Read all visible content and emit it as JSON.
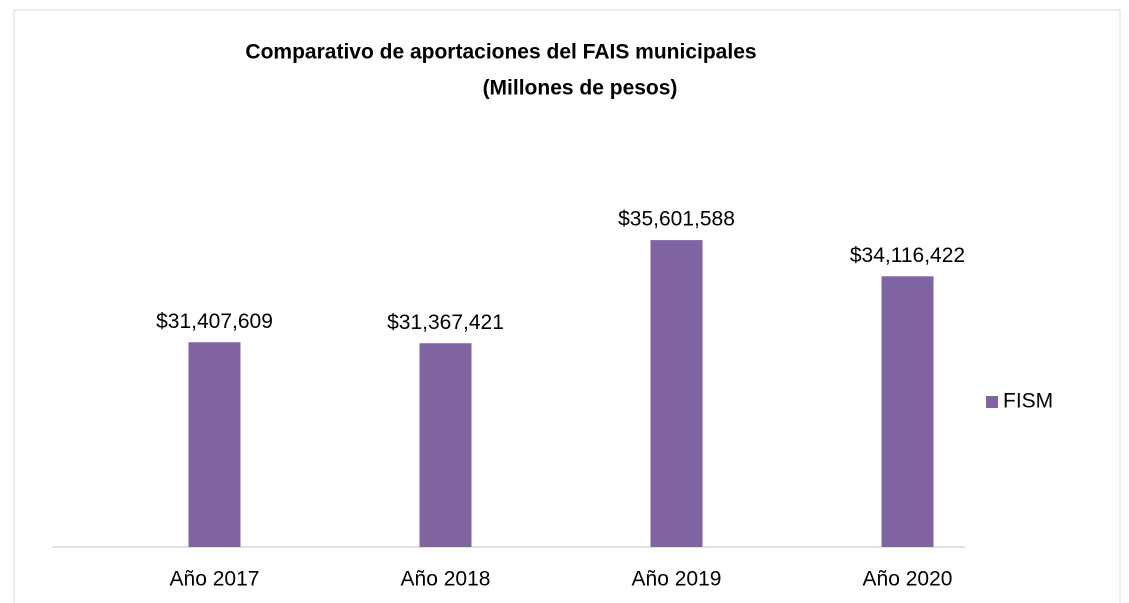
{
  "chart_data": {
    "type": "bar",
    "title": "Comparativo de aportaciones del FAIS municipales",
    "subtitle": "(Millones de pesos)",
    "categories": [
      "Año 2017",
      "Año 2018",
      "Año 2019",
      "Año 2020"
    ],
    "series": [
      {
        "name": "FISM",
        "color": "#8064a2",
        "values": [
          31407609,
          31367421,
          35601588,
          34116422
        ],
        "value_labels": [
          "$31,407,609",
          "$31,367,421",
          "$35,601,588",
          "$34,116,422"
        ]
      }
    ],
    "ylim": [
      23000000,
      40000000
    ],
    "legend": "right"
  }
}
